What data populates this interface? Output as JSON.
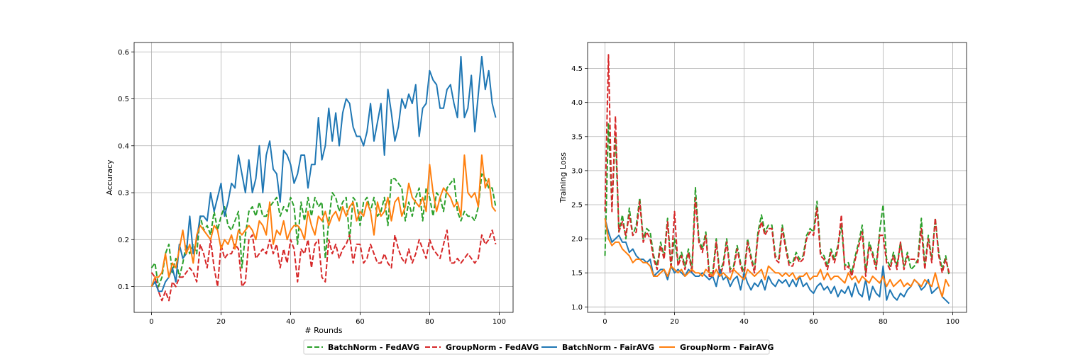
{
  "chart_data": [
    {
      "type": "line",
      "xlabel": "# Rounds",
      "ylabel": "Accuracy",
      "xlim": [
        -5,
        104
      ],
      "ylim": [
        0.045,
        0.62
      ],
      "xticks": [
        0,
        20,
        40,
        60,
        80,
        100
      ],
      "yticks": [
        0.1,
        0.2,
        0.3,
        0.4,
        0.5,
        0.6
      ],
      "ytick_labels": [
        "0.1",
        "0.2",
        "0.3",
        "0.4",
        "0.5",
        "0.6"
      ],
      "grid": true,
      "series": [
        {
          "name": "BatchNorm - FedAVG",
          "color": "#2ca02c",
          "dash": "dashed",
          "values": [
            0.14,
            0.15,
            0.1,
            0.12,
            0.17,
            0.19,
            0.13,
            0.16,
            0.12,
            0.15,
            0.19,
            0.17,
            0.19,
            0.17,
            0.25,
            0.22,
            0.23,
            0.21,
            0.26,
            0.22,
            0.25,
            0.27,
            0.23,
            0.22,
            0.24,
            0.26,
            0.14,
            0.21,
            0.26,
            0.27,
            0.25,
            0.28,
            0.25,
            0.25,
            0.27,
            0.28,
            0.29,
            0.25,
            0.27,
            0.26,
            0.29,
            0.27,
            0.19,
            0.28,
            0.24,
            0.29,
            0.25,
            0.29,
            0.27,
            0.28,
            0.16,
            0.24,
            0.3,
            0.29,
            0.26,
            0.28,
            0.29,
            0.2,
            0.29,
            0.28,
            0.23,
            0.28,
            0.29,
            0.26,
            0.29,
            0.25,
            0.26,
            0.29,
            0.23,
            0.33,
            0.33,
            0.32,
            0.31,
            0.24,
            0.28,
            0.25,
            0.29,
            0.31,
            0.24,
            0.31,
            0.29,
            0.25,
            0.3,
            0.29,
            0.26,
            0.31,
            0.32,
            0.33,
            0.26,
            0.24,
            0.26,
            0.25,
            0.25,
            0.24,
            0.27,
            0.34,
            0.33,
            0.31,
            0.31,
            0.27
          ]
        },
        {
          "name": "GroupNorm - FedAVG",
          "color": "#d62728",
          "dash": "dashed",
          "values": [
            0.13,
            0.12,
            0.09,
            0.07,
            0.09,
            0.07,
            0.11,
            0.1,
            0.12,
            0.12,
            0.13,
            0.14,
            0.13,
            0.11,
            0.19,
            0.17,
            0.14,
            0.2,
            0.14,
            0.1,
            0.19,
            0.16,
            0.17,
            0.17,
            0.19,
            0.18,
            0.1,
            0.11,
            0.2,
            0.21,
            0.16,
            0.17,
            0.18,
            0.17,
            0.2,
            0.17,
            0.19,
            0.14,
            0.18,
            0.15,
            0.2,
            0.18,
            0.11,
            0.18,
            0.17,
            0.2,
            0.14,
            0.19,
            0.2,
            0.12,
            0.11,
            0.2,
            0.17,
            0.19,
            0.16,
            0.18,
            0.19,
            0.21,
            0.15,
            0.19,
            0.19,
            0.15,
            0.16,
            0.19,
            0.17,
            0.15,
            0.15,
            0.17,
            0.15,
            0.14,
            0.21,
            0.18,
            0.16,
            0.15,
            0.18,
            0.15,
            0.17,
            0.2,
            0.18,
            0.16,
            0.2,
            0.18,
            0.17,
            0.16,
            0.19,
            0.22,
            0.15,
            0.15,
            0.16,
            0.15,
            0.16,
            0.17,
            0.16,
            0.15,
            0.16,
            0.21,
            0.19,
            0.2,
            0.22,
            0.19
          ]
        },
        {
          "name": "BatchNorm - FairAVG",
          "color": "#1f77b4",
          "dash": "solid",
          "values": [
            0.1,
            0.11,
            0.09,
            0.09,
            0.11,
            0.12,
            0.14,
            0.11,
            0.19,
            0.16,
            0.17,
            0.25,
            0.17,
            0.2,
            0.25,
            0.25,
            0.24,
            0.3,
            0.26,
            0.29,
            0.32,
            0.25,
            0.28,
            0.32,
            0.31,
            0.38,
            0.34,
            0.3,
            0.37,
            0.3,
            0.33,
            0.4,
            0.3,
            0.38,
            0.41,
            0.35,
            0.34,
            0.28,
            0.39,
            0.38,
            0.36,
            0.32,
            0.34,
            0.38,
            0.38,
            0.31,
            0.36,
            0.36,
            0.46,
            0.37,
            0.4,
            0.48,
            0.41,
            0.47,
            0.4,
            0.47,
            0.5,
            0.49,
            0.44,
            0.42,
            0.42,
            0.4,
            0.43,
            0.49,
            0.41,
            0.45,
            0.49,
            0.38,
            0.52,
            0.47,
            0.41,
            0.44,
            0.5,
            0.48,
            0.51,
            0.49,
            0.53,
            0.42,
            0.48,
            0.49,
            0.56,
            0.54,
            0.53,
            0.48,
            0.48,
            0.52,
            0.53,
            0.49,
            0.46,
            0.59,
            0.46,
            0.48,
            0.55,
            0.43,
            0.51,
            0.59,
            0.52,
            0.56,
            0.49,
            0.46
          ]
        },
        {
          "name": "GroupNorm - FairAVG",
          "color": "#ff7f0e",
          "dash": "solid",
          "values": [
            0.1,
            0.12,
            0.12,
            0.13,
            0.17,
            0.12,
            0.15,
            0.14,
            0.18,
            0.22,
            0.17,
            0.19,
            0.15,
            0.21,
            0.23,
            0.22,
            0.21,
            0.2,
            0.23,
            0.22,
            0.18,
            0.2,
            0.19,
            0.21,
            0.18,
            0.22,
            0.21,
            0.22,
            0.23,
            0.22,
            0.2,
            0.24,
            0.23,
            0.21,
            0.28,
            0.19,
            0.22,
            0.21,
            0.24,
            0.2,
            0.22,
            0.23,
            0.23,
            0.22,
            0.2,
            0.26,
            0.23,
            0.21,
            0.25,
            0.24,
            0.26,
            0.23,
            0.25,
            0.26,
            0.24,
            0.27,
            0.25,
            0.27,
            0.28,
            0.24,
            0.26,
            0.25,
            0.28,
            0.26,
            0.21,
            0.28,
            0.25,
            0.26,
            0.29,
            0.24,
            0.28,
            0.29,
            0.25,
            0.27,
            0.32,
            0.29,
            0.28,
            0.27,
            0.29,
            0.26,
            0.36,
            0.3,
            0.26,
            0.29,
            0.31,
            0.3,
            0.29,
            0.27,
            0.28,
            0.25,
            0.38,
            0.3,
            0.29,
            0.3,
            0.27,
            0.38,
            0.31,
            0.33,
            0.27,
            0.26
          ]
        }
      ]
    },
    {
      "type": "line",
      "xlabel": "",
      "ylabel": "Training Loss",
      "xlim": [
        -5,
        104
      ],
      "ylim": [
        0.92,
        4.88
      ],
      "xticks": [
        0,
        20,
        40,
        60,
        80,
        100
      ],
      "yticks": [
        1.0,
        1.5,
        2.0,
        2.5,
        3.0,
        3.5,
        4.0,
        4.5
      ],
      "ytick_labels": [
        "1.0",
        "1.5",
        "2.0",
        "2.5",
        "3.0",
        "3.5",
        "4.0",
        "4.5"
      ],
      "grid": true,
      "series": [
        {
          "name": "BatchNorm - FedAVG",
          "color": "#2ca02c",
          "dash": "dashed",
          "values": [
            1.75,
            3.7,
            2.45,
            3.55,
            2.1,
            2.35,
            2.0,
            2.45,
            2.05,
            2.2,
            2.6,
            2.0,
            2.15,
            2.1,
            1.75,
            1.6,
            1.95,
            1.75,
            2.3,
            1.6,
            2.0,
            1.65,
            1.8,
            1.6,
            1.85,
            1.55,
            2.75,
            2.0,
            1.85,
            2.1,
            1.5,
            1.5,
            2.0,
            1.5,
            1.65,
            2.0,
            1.55,
            1.6,
            1.9,
            1.65,
            1.5,
            2.0,
            1.75,
            1.55,
            2.1,
            2.35,
            2.1,
            2.2,
            2.2,
            1.75,
            1.7,
            2.2,
            1.9,
            1.65,
            1.65,
            1.8,
            1.7,
            1.75,
            2.05,
            2.15,
            2.1,
            2.55,
            1.8,
            1.75,
            1.6,
            1.85,
            1.7,
            1.9,
            2.2,
            1.6,
            1.65,
            1.5,
            1.75,
            1.95,
            2.2,
            1.5,
            1.95,
            1.8,
            1.6,
            2.1,
            2.5,
            1.7,
            1.6,
            1.8,
            1.6,
            1.95,
            1.6,
            1.8,
            1.55,
            1.6,
            1.7,
            2.3,
            1.6,
            2.05,
            1.7,
            2.3,
            1.8,
            1.55,
            1.75,
            1.45
          ]
        },
        {
          "name": "GroupNorm - FedAVG",
          "color": "#d62728",
          "dash": "dashed",
          "values": [
            2.4,
            4.7,
            2.4,
            3.8,
            2.1,
            2.25,
            2.05,
            2.35,
            2.05,
            2.1,
            2.55,
            1.95,
            2.1,
            2.0,
            1.7,
            1.55,
            1.9,
            1.7,
            2.25,
            1.55,
            2.4,
            1.6,
            1.75,
            1.55,
            1.8,
            1.5,
            2.6,
            1.95,
            1.8,
            2.05,
            1.45,
            1.45,
            1.95,
            1.45,
            1.6,
            1.95,
            1.5,
            1.55,
            1.85,
            1.6,
            1.45,
            1.95,
            1.7,
            1.5,
            2.05,
            2.25,
            2.05,
            2.15,
            2.15,
            1.7,
            1.65,
            2.15,
            1.85,
            1.6,
            1.6,
            1.75,
            1.65,
            1.7,
            2.0,
            2.1,
            2.05,
            2.45,
            1.75,
            1.7,
            1.55,
            1.8,
            1.65,
            1.85,
            2.35,
            1.55,
            1.6,
            1.45,
            1.7,
            1.9,
            2.1,
            1.45,
            1.9,
            1.75,
            1.55,
            2.05,
            2.05,
            1.65,
            1.55,
            1.75,
            1.55,
            1.95,
            1.55,
            1.75,
            1.7,
            1.7,
            1.65,
            2.15,
            1.55,
            2.0,
            1.65,
            2.3,
            1.75,
            1.5,
            1.7,
            1.5
          ]
        },
        {
          "name": "BatchNorm - FairAVG",
          "color": "#1f77b4",
          "dash": "solid",
          "values": [
            2.3,
            2.1,
            1.95,
            2.0,
            2.05,
            1.95,
            1.95,
            1.8,
            1.85,
            1.75,
            1.7,
            1.7,
            1.65,
            1.7,
            1.45,
            1.5,
            1.55,
            1.55,
            1.4,
            1.6,
            1.5,
            1.55,
            1.5,
            1.45,
            1.55,
            1.5,
            1.45,
            1.45,
            1.5,
            1.45,
            1.4,
            1.45,
            1.3,
            1.55,
            1.4,
            1.45,
            1.3,
            1.4,
            1.45,
            1.25,
            1.5,
            1.35,
            1.25,
            1.35,
            1.3,
            1.4,
            1.25,
            1.45,
            1.35,
            1.3,
            1.4,
            1.35,
            1.4,
            1.3,
            1.4,
            1.3,
            1.45,
            1.3,
            1.35,
            1.25,
            1.2,
            1.3,
            1.35,
            1.25,
            1.3,
            1.2,
            1.3,
            1.15,
            1.25,
            1.2,
            1.3,
            1.15,
            1.35,
            1.2,
            1.15,
            1.4,
            1.1,
            1.3,
            1.2,
            1.15,
            1.6,
            1.1,
            1.25,
            1.15,
            1.1,
            1.2,
            1.15,
            1.25,
            1.3,
            1.4,
            1.35,
            1.25,
            1.3,
            1.4,
            1.2,
            1.25,
            1.3,
            1.15,
            1.1,
            1.05
          ]
        },
        {
          "name": "GroupNorm - FairAVG",
          "color": "#ff7f0e",
          "dash": "solid",
          "values": [
            2.3,
            2.0,
            1.9,
            1.95,
            1.95,
            1.85,
            1.8,
            1.75,
            1.65,
            1.7,
            1.7,
            1.65,
            1.65,
            1.6,
            1.45,
            1.45,
            1.5,
            1.55,
            1.45,
            1.6,
            1.55,
            1.5,
            1.55,
            1.45,
            1.5,
            1.55,
            1.5,
            1.5,
            1.45,
            1.55,
            1.5,
            1.45,
            1.55,
            1.45,
            1.5,
            1.45,
            1.4,
            1.55,
            1.5,
            1.45,
            1.4,
            1.55,
            1.5,
            1.45,
            1.5,
            1.55,
            1.4,
            1.6,
            1.55,
            1.5,
            1.5,
            1.45,
            1.5,
            1.45,
            1.5,
            1.4,
            1.45,
            1.45,
            1.5,
            1.4,
            1.45,
            1.45,
            1.55,
            1.4,
            1.5,
            1.4,
            1.45,
            1.45,
            1.4,
            1.35,
            1.5,
            1.4,
            1.45,
            1.35,
            1.45,
            1.4,
            1.35,
            1.45,
            1.4,
            1.35,
            1.45,
            1.3,
            1.4,
            1.3,
            1.35,
            1.4,
            1.3,
            1.35,
            1.3,
            1.4,
            1.35,
            1.3,
            1.4,
            1.35,
            1.3,
            1.5,
            1.3,
            1.15,
            1.4,
            1.3
          ]
        }
      ]
    }
  ],
  "legend": {
    "placement": "bottom-center",
    "items": [
      {
        "label": "BatchNorm - FedAVG",
        "color": "#2ca02c",
        "dash": "dashed"
      },
      {
        "label": "GroupNorm - FedAVG",
        "color": "#d62728",
        "dash": "dashed"
      },
      {
        "label": "BatchNorm - FairAVG",
        "color": "#1f77b4",
        "dash": "solid"
      },
      {
        "label": "GroupNorm - FairAVG",
        "color": "#ff7f0e",
        "dash": "solid"
      }
    ]
  }
}
